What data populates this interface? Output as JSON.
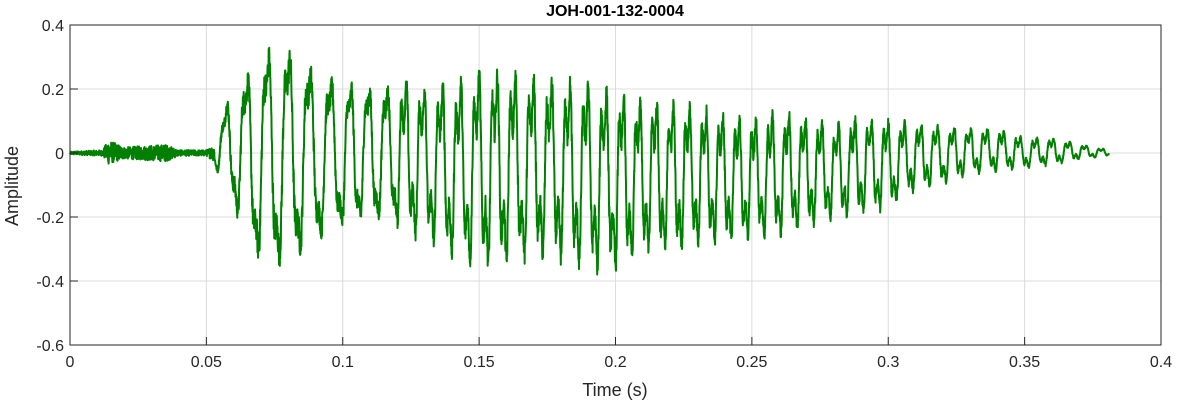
{
  "chart_data": {
    "type": "line",
    "title": "JOH-001-132-0004",
    "xlabel": "Time (s)",
    "ylabel": "Amplitude",
    "xlim": [
      0,
      0.4
    ],
    "ylim": [
      -0.6,
      0.4
    ],
    "xticks": [
      0,
      0.05,
      0.1,
      0.15,
      0.2,
      0.25,
      0.3,
      0.35,
      0.4
    ],
    "xtick_labels": [
      "0",
      "0.05",
      "0.1",
      "0.15",
      "0.2",
      "0.25",
      "0.3",
      "0.35",
      "0.4"
    ],
    "yticks": [
      -0.6,
      -0.4,
      -0.2,
      0,
      0.2,
      0.4
    ],
    "ytick_labels": [
      "-0.6",
      "-0.4",
      "-0.2",
      "0",
      "0.2",
      "0.4"
    ],
    "grid": true,
    "series": [
      {
        "color": "#008000",
        "envelope": {
          "t": [
            0,
            0.012,
            0.014,
            0.02,
            0.035,
            0.04,
            0.05,
            0.053,
            0.055,
            0.06,
            0.065,
            0.07,
            0.075,
            0.08,
            0.085,
            0.09,
            0.1,
            0.11,
            0.12,
            0.13,
            0.14,
            0.15,
            0.16,
            0.17,
            0.18,
            0.19,
            0.2,
            0.21,
            0.22,
            0.23,
            0.24,
            0.25,
            0.26,
            0.27,
            0.28,
            0.29,
            0.3,
            0.31,
            0.32,
            0.33,
            0.34,
            0.35,
            0.36,
            0.37,
            0.381
          ],
          "max": [
            0.005,
            0.01,
            0.045,
            0.02,
            0.03,
            0.01,
            0.01,
            0.03,
            0.11,
            0.27,
            0.3,
            0.37,
            0.4,
            0.39,
            0.36,
            0.3,
            0.26,
            0.25,
            0.24,
            0.23,
            0.23,
            0.27,
            0.27,
            0.25,
            0.24,
            0.24,
            0.2,
            0.19,
            0.17,
            0.16,
            0.13,
            0.12,
            0.14,
            0.12,
            0.1,
            0.12,
            0.11,
            0.1,
            0.09,
            0.08,
            0.08,
            0.05,
            0.05,
            0.03,
            0.01
          ],
          "min": [
            -0.005,
            -0.01,
            -0.04,
            -0.02,
            -0.03,
            -0.01,
            -0.01,
            -0.03,
            -0.12,
            -0.2,
            -0.35,
            -0.4,
            -0.41,
            -0.41,
            -0.37,
            -0.32,
            -0.27,
            -0.25,
            -0.24,
            -0.29,
            -0.34,
            -0.37,
            -0.37,
            -0.34,
            -0.35,
            -0.38,
            -0.38,
            -0.33,
            -0.32,
            -0.3,
            -0.29,
            -0.28,
            -0.27,
            -0.24,
            -0.21,
            -0.2,
            -0.18,
            -0.12,
            -0.1,
            -0.07,
            -0.06,
            -0.05,
            -0.04,
            -0.02,
            -0.01
          ]
        }
      }
    ]
  }
}
